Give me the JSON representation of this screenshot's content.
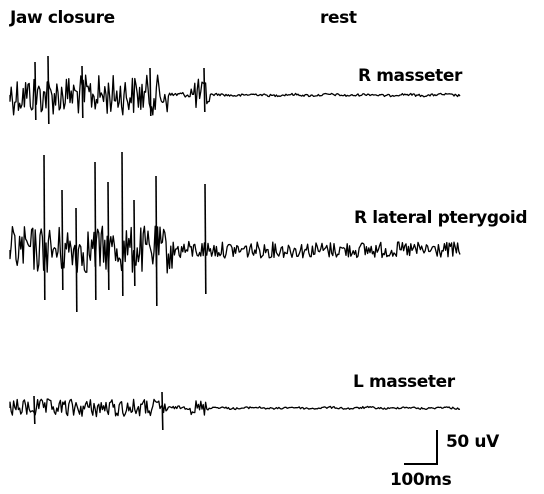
{
  "chart_data": {
    "type": "line",
    "annotations": {
      "condition_active": "Jaw closure",
      "condition_rest": "rest"
    },
    "series": [
      {
        "name": "R masseter"
      },
      {
        "name": "R lateral pterygoid"
      },
      {
        "name": "L masseter"
      }
    ],
    "scale_bar": {
      "amplitude_value": 50,
      "amplitude_label": "50 uV",
      "time_value": 100,
      "time_label": "100ms"
    }
  }
}
